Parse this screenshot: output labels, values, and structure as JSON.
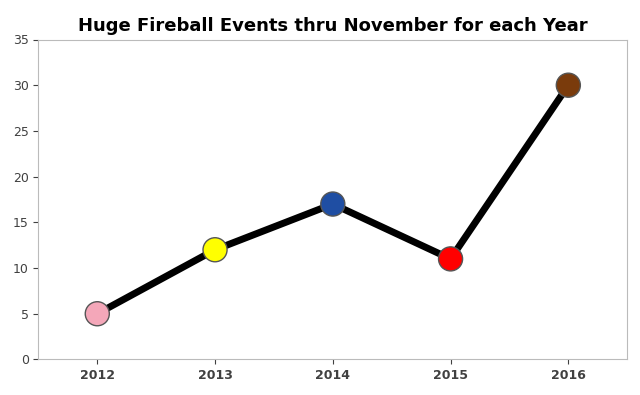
{
  "chart_data": {
    "type": "line",
    "title": "Huge Fireball Events thru November for each Year",
    "categories": [
      "2012",
      "2013",
      "2014",
      "2015",
      "2016"
    ],
    "values": [
      5,
      12,
      17,
      11,
      30
    ],
    "color": "#000000",
    "colors": [
      "#f4a7b9",
      "#ffff00",
      "#1f4ea3",
      "#ff0000",
      "#7a3b0c"
    ],
    "marker": "circle",
    "ylim": [
      0,
      35
    ],
    "yticks": [
      0,
      5,
      10,
      15,
      20,
      25,
      30,
      35
    ],
    "grid": false
  }
}
